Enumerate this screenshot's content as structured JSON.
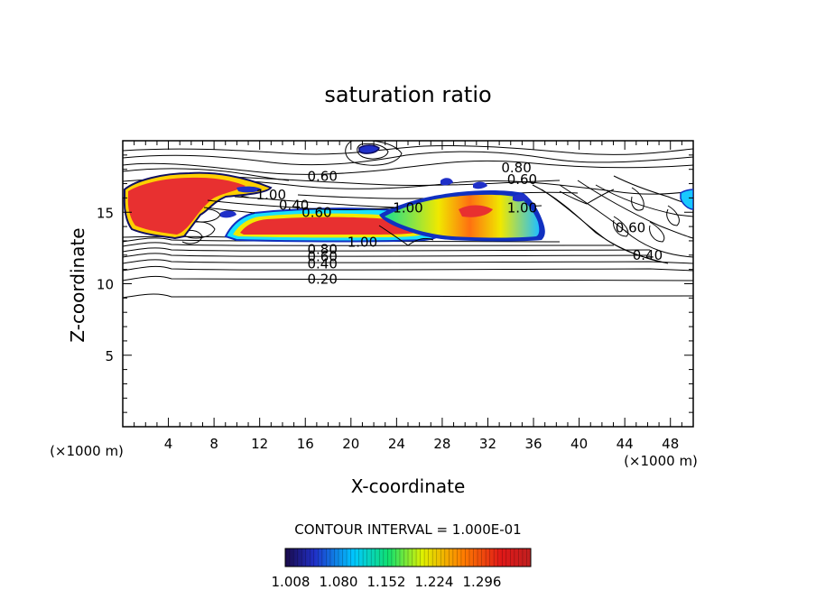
{
  "chart_data": {
    "type": "contour",
    "title": "saturation ratio",
    "xlabel": "X-coordinate",
    "ylabel": "Z-coordinate",
    "x_unit_label": "(×1000 m)",
    "z_unit_label": "(×1000 m)",
    "xlim": [
      0,
      50
    ],
    "ylim": [
      0,
      20
    ],
    "x_ticks": [
      "4",
      "8",
      "12",
      "16",
      "20",
      "24",
      "28",
      "32",
      "36",
      "40",
      "44",
      "48"
    ],
    "y_ticks": [
      "5",
      "10",
      "15"
    ],
    "contour_interval_text": "CONTOUR INTERVAL = 1.000E-01",
    "contour_labels": [
      {
        "text": "0.20",
        "x": 17.5,
        "z": 10.3
      },
      {
        "text": "0.40",
        "x": 17.5,
        "z": 11.4
      },
      {
        "text": "0.60",
        "x": 17.5,
        "z": 11.9
      },
      {
        "text": "0.80",
        "x": 17.5,
        "z": 12.4
      },
      {
        "text": "1.00",
        "x": 21.0,
        "z": 12.9
      },
      {
        "text": "0.60",
        "x": 17.0,
        "z": 15.0
      },
      {
        "text": "0.40",
        "x": 15.0,
        "z": 15.5
      },
      {
        "text": "1.00",
        "x": 13.0,
        "z": 16.2
      },
      {
        "text": "0.60",
        "x": 17.5,
        "z": 17.5
      },
      {
        "text": "1.00",
        "x": 25.0,
        "z": 15.3
      },
      {
        "text": "0.80",
        "x": 34.5,
        "z": 18.1
      },
      {
        "text": "0.60",
        "x": 35.0,
        "z": 17.3
      },
      {
        "text": "0.60",
        "x": 44.5,
        "z": 13.9
      },
      {
        "text": "0.40",
        "x": 46.0,
        "z": 12.0
      },
      {
        "text": "1.00",
        "x": 35.0,
        "z": 15.3
      }
    ],
    "colorbar": {
      "ticks": [
        "1.008",
        "1.080",
        "1.152",
        "1.224",
        "1.296"
      ],
      "colors": [
        "#1a0a4a",
        "#2030c8",
        "#00c8ff",
        "#10e070",
        "#e0f000",
        "#ff8000",
        "#e01818",
        "#c02020"
      ]
    },
    "regions": [
      {
        "name": "red-cloud-left",
        "color": "#e83030",
        "outline": "#ffd000"
      },
      {
        "name": "red-cloud-center",
        "color": "#e83030",
        "outline": "#ffd000"
      },
      {
        "name": "mixed-cloud-right",
        "color": "#18e090",
        "outline": "#1030c0"
      },
      {
        "name": "blue-cell-top",
        "color": "#2030c8",
        "outline": "#0a0a60"
      }
    ]
  }
}
